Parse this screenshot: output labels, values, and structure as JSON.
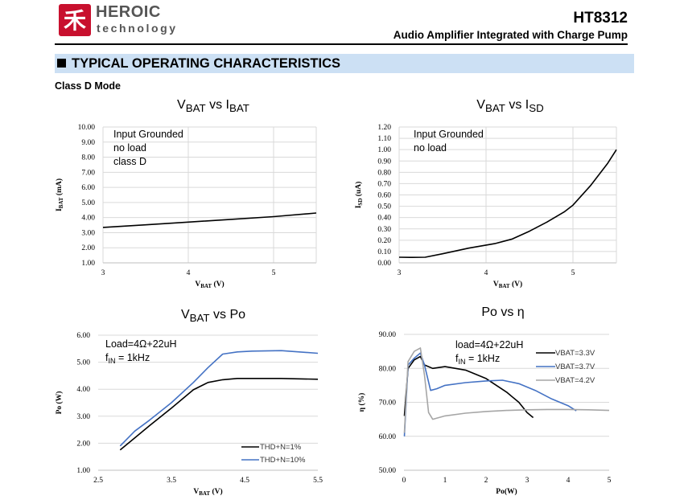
{
  "header": {
    "logo_glyph": "禾",
    "brand_name": "HEROIC",
    "brand_sub": "technology",
    "part_number": "HT8312",
    "subtitle": "Audio Amplifier Integrated with Charge Pump"
  },
  "section": {
    "title": "TYPICAL OPERATING CHARACTERISTICS",
    "mode": "Class D Mode"
  },
  "colors": {
    "section_bar": "#cce0f4",
    "series_black": "#000000",
    "series_blue": "#4472c4",
    "series_gray": "#a6a6a6",
    "grid": "#d9d9d9"
  },
  "chart_data": [
    {
      "id": "vbat_ibat",
      "type": "line",
      "title_main": "V",
      "title_sub1": "BAT",
      "title_mid": " vs I",
      "title_sub2": "BAT",
      "xlabel_main": "V",
      "xlabel_sub": "BAT",
      "xlabel_unit": " (V)",
      "ylabel_main": "I",
      "ylabel_sub": "BAT",
      "ylabel_unit": " (mA)",
      "xlim": [
        3,
        5.5
      ],
      "ylim": [
        1,
        10
      ],
      "x_ticks": [
        "3",
        "4",
        "5"
      ],
      "y_ticks": [
        "1.00",
        "2.00",
        "3.00",
        "4.00",
        "5.00",
        "6.00",
        "7.00",
        "8.00",
        "9.00",
        "10.00"
      ],
      "annotations": [
        "Input Grounded",
        "no load",
        "class D"
      ],
      "series": [
        {
          "name": "IBAT",
          "color": "#000000",
          "x": [
            3.0,
            3.5,
            4.0,
            4.5,
            5.0,
            5.5
          ],
          "y": [
            3.35,
            3.52,
            3.7,
            3.88,
            4.06,
            4.3
          ]
        }
      ]
    },
    {
      "id": "vbat_isd",
      "type": "line",
      "title_main": "V",
      "title_sub1": "BAT",
      "title_mid": " vs I",
      "title_sub2": "SD",
      "xlabel_main": "V",
      "xlabel_sub": "BAT",
      "xlabel_unit": " (V)",
      "ylabel_main": "I",
      "ylabel_sub": "SD",
      "ylabel_unit": " (uA)",
      "xlim": [
        3,
        5.5
      ],
      "ylim": [
        0,
        1.2
      ],
      "x_ticks": [
        "3",
        "4",
        "5"
      ],
      "y_ticks": [
        "0.00",
        "0.10",
        "0.20",
        "0.30",
        "0.40",
        "0.50",
        "0.60",
        "0.70",
        "0.80",
        "0.90",
        "1.00",
        "1.10",
        "1.20"
      ],
      "annotations": [
        "Input Grounded",
        "no load"
      ],
      "series": [
        {
          "name": "ISD",
          "color": "#000000",
          "x": [
            3.0,
            3.15,
            3.3,
            3.5,
            3.8,
            4.1,
            4.3,
            4.5,
            4.7,
            4.9,
            5.0,
            5.2,
            5.4,
            5.5
          ],
          "y": [
            0.05,
            0.048,
            0.05,
            0.08,
            0.13,
            0.17,
            0.21,
            0.28,
            0.36,
            0.45,
            0.51,
            0.68,
            0.88,
            1.0
          ]
        }
      ]
    },
    {
      "id": "vbat_po",
      "type": "line",
      "title_main": "V",
      "title_sub1": "BAT",
      "title_mid": " vs Po",
      "title_sub2": "",
      "xlabel_main": "V",
      "xlabel_sub": "BAT",
      "xlabel_unit": " (V)",
      "ylabel_main": "Po",
      "ylabel_sub": "",
      "ylabel_unit": " (W)",
      "xlim": [
        2.5,
        5.5
      ],
      "ylim": [
        1,
        6
      ],
      "x_ticks": [
        "2.5",
        "3.5",
        "4.5",
        "5.5"
      ],
      "y_ticks": [
        "1.00",
        "2.00",
        "3.00",
        "4.00",
        "5.00",
        "6.00"
      ],
      "annotation_line1": "Load=4Ω+22uH",
      "annotation_line2_main": "f",
      "annotation_line2_sub": "IN",
      "annotation_line2_rest": " = 1kHz",
      "series": [
        {
          "name": "THD+N=1%",
          "color": "#000000",
          "x": [
            2.8,
            3.0,
            3.2,
            3.5,
            3.8,
            4.0,
            4.2,
            4.4,
            4.6,
            5.0,
            5.5
          ],
          "y": [
            1.75,
            2.2,
            2.65,
            3.3,
            3.98,
            4.25,
            4.35,
            4.4,
            4.4,
            4.4,
            4.37
          ]
        },
        {
          "name": "THD+N=10%",
          "color": "#4472c4",
          "x": [
            2.8,
            3.0,
            3.2,
            3.5,
            3.8,
            4.0,
            4.2,
            4.4,
            4.6,
            5.0,
            5.5
          ],
          "y": [
            1.9,
            2.45,
            2.85,
            3.5,
            4.25,
            4.8,
            5.3,
            5.38,
            5.41,
            5.43,
            5.33
          ]
        }
      ]
    },
    {
      "id": "po_eta",
      "type": "line",
      "title_main": "Po vs η",
      "xlabel_main": "Po",
      "xlabel_unit": "(W)",
      "ylabel_main": "η",
      "ylabel_unit": " (%)",
      "xlim": [
        0,
        5
      ],
      "ylim": [
        50,
        90
      ],
      "x_ticks": [
        "0",
        "1",
        "2",
        "3",
        "4",
        "5"
      ],
      "y_ticks": [
        "50.00",
        "60.00",
        "70.00",
        "80.00",
        "90.00"
      ],
      "annotation_line1": "load=4Ω+22uH",
      "annotation_line2_main": "f",
      "annotation_line2_sub": "IN",
      "annotation_line2_rest": " = 1kHz",
      "series": [
        {
          "name": "VBAT=3.3V",
          "color": "#000000",
          "x": [
            0.01,
            0.1,
            0.25,
            0.4,
            0.5,
            0.7,
            1.0,
            1.5,
            2.0,
            2.5,
            2.8,
            3.0,
            3.15
          ],
          "y": [
            66,
            80,
            82.5,
            83.5,
            81,
            80,
            80.5,
            79.5,
            77,
            73,
            70,
            67,
            65.5
          ]
        },
        {
          "name": "VBAT=3.7V",
          "color": "#4472c4",
          "x": [
            0.01,
            0.1,
            0.25,
            0.4,
            0.5,
            0.65,
            0.8,
            1.0,
            1.5,
            2.0,
            2.4,
            2.8,
            3.2,
            3.6,
            4.0,
            4.2
          ],
          "y": [
            60,
            81,
            83,
            84.5,
            81,
            73.5,
            74,
            75,
            75.8,
            76.3,
            76.5,
            75.5,
            73.5,
            71,
            69,
            67.5
          ]
        },
        {
          "name": "VBAT=4.2V",
          "color": "#a6a6a6",
          "x": [
            0.01,
            0.1,
            0.25,
            0.4,
            0.5,
            0.6,
            0.7,
            1.0,
            1.5,
            2.0,
            2.5,
            3.0,
            3.5,
            4.0,
            4.5,
            5.0
          ],
          "y": [
            61,
            82,
            85,
            86,
            78,
            67,
            65,
            66,
            66.8,
            67.3,
            67.6,
            67.8,
            67.9,
            67.9,
            67.8,
            67.6
          ]
        }
      ]
    }
  ]
}
